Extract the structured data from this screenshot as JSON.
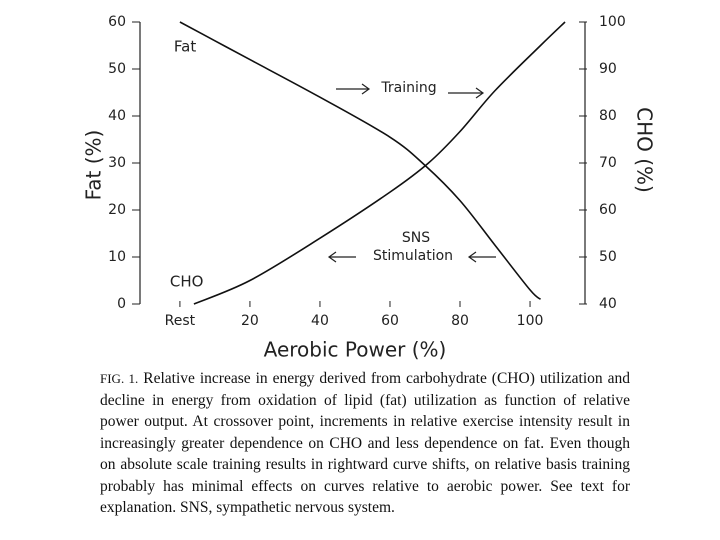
{
  "chart_data": {
    "type": "line",
    "x_label": "Aerobic Power (%)",
    "y_label": "Fat (%)",
    "y2_label": "CHO (%)",
    "xlim": [
      -11.4,
      115.7
    ],
    "xticks": [
      {
        "value": 0,
        "label": "Rest"
      },
      20,
      40,
      60,
      80,
      100
    ],
    "ylim": [
      0,
      60
    ],
    "yticks": [
      0,
      10,
      20,
      30,
      40,
      50,
      60
    ],
    "y2lim": [
      40,
      100
    ],
    "y2ticks": [
      40,
      50,
      60,
      70,
      80,
      90,
      100
    ],
    "series": [
      {
        "name": "Fat",
        "color": "#111111",
        "x": [
          0,
          10,
          20,
          40,
          60,
          70,
          80,
          90,
          100,
          103
        ],
        "values": [
          60,
          56,
          52,
          44,
          35.5,
          29.5,
          22,
          12.5,
          3,
          1
        ]
      },
      {
        "name": "CHO",
        "color": "#111111",
        "axis": "y2",
        "x": [
          4,
          20,
          40,
          60,
          71,
          80,
          90,
          103,
          110
        ],
        "values": [
          40,
          45,
          54,
          63.8,
          70,
          76.7,
          85.4,
          95,
          100
        ]
      }
    ],
    "annotations": [
      "Training",
      "SNS",
      "Stimulation"
    ],
    "caption_label": "FIG. 1.",
    "caption": "Relative increase in energy derived from carbohydrate (CHO) utilization and decline in energy from oxidation of lipid (fat) utilization as function of relative power output. At crossover point, increments in relative exercise intensity result in increasingly greater dependence on CHO and less dependence on fat. Even though on absolute scale training results in rightward curve shifts, on relative basis training probably has minimal effects on curves relative to aerobic power. See text for explanation. SNS, sympathetic nervous system."
  }
}
